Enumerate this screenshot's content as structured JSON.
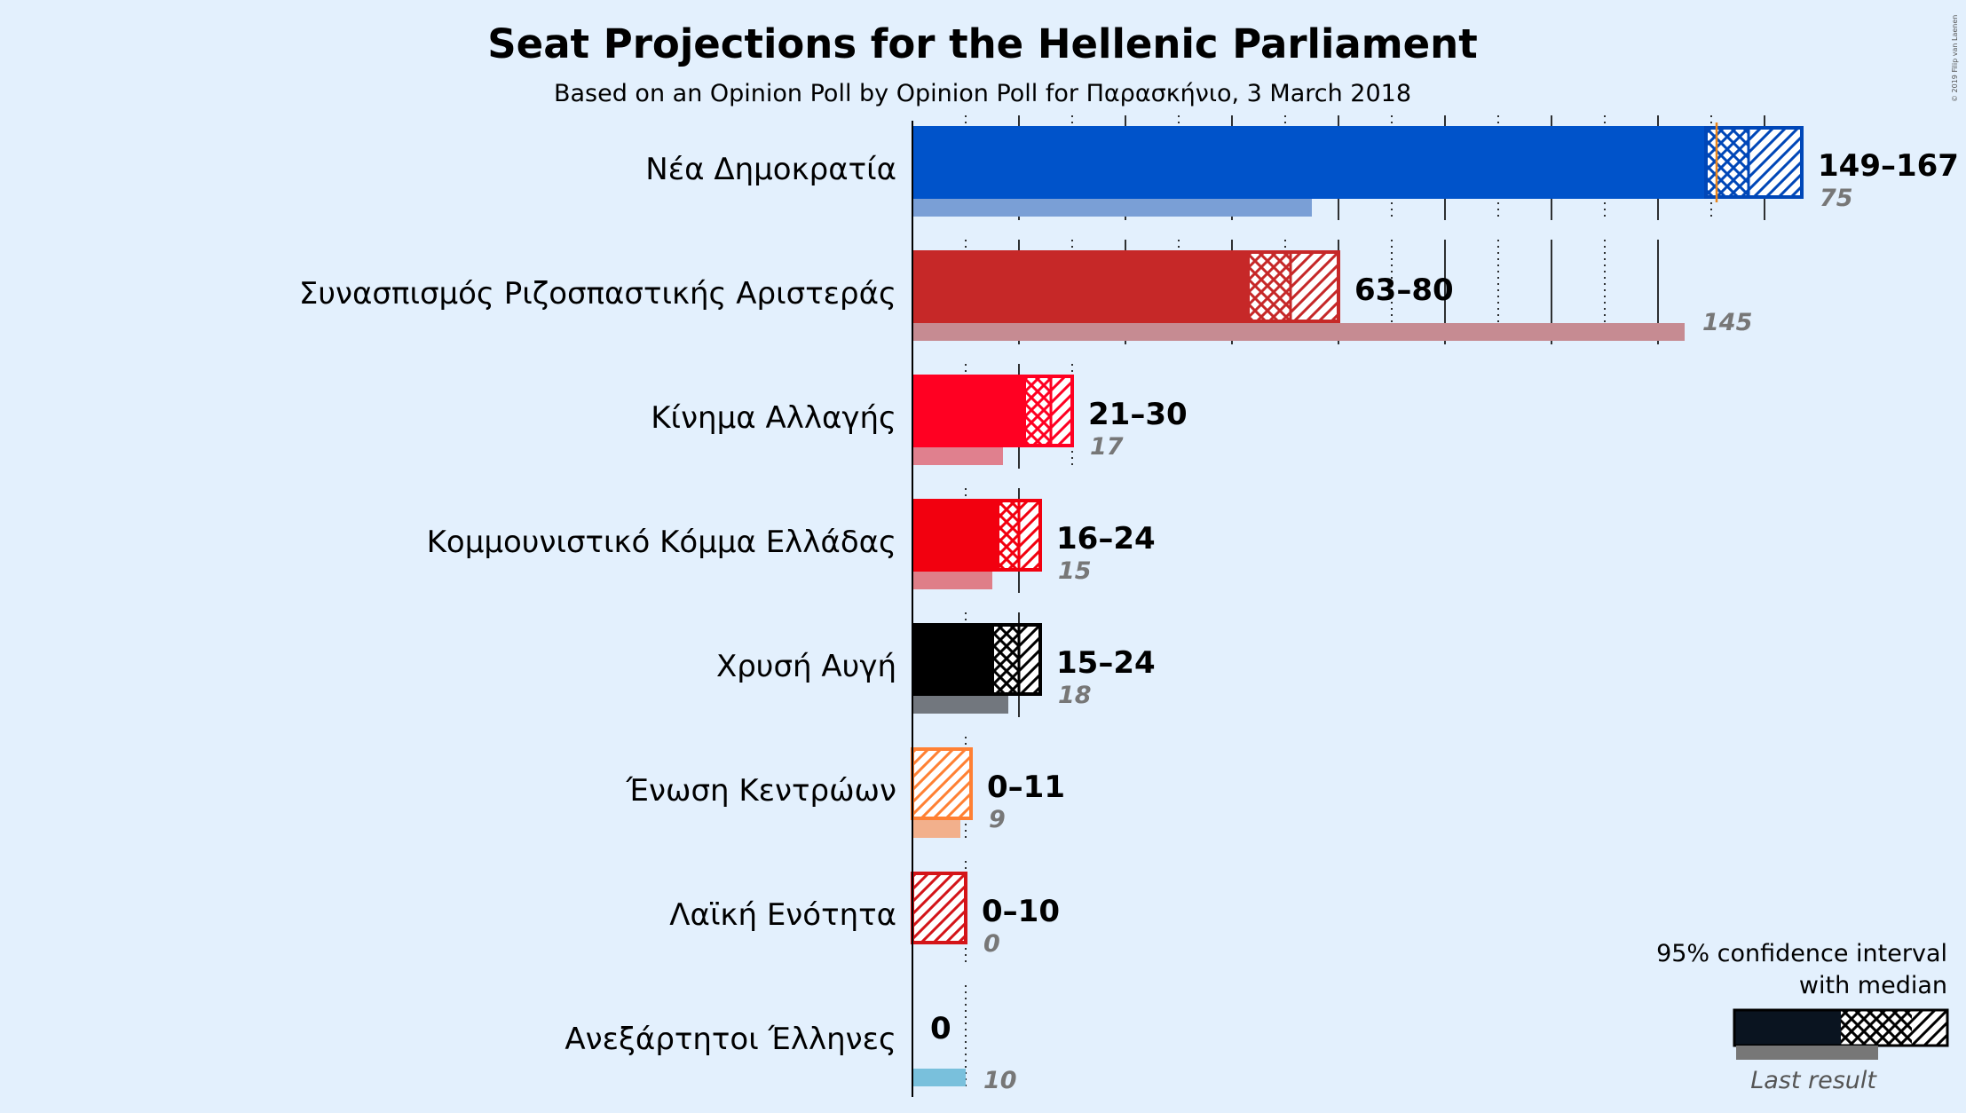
{
  "chart_data": {
    "type": "bar",
    "title": "Seat Projections for the Hellenic Parliament",
    "subtitle": "Based on an Opinion Poll by Opinion Poll for Παρασκήνιο, 3 March 2018",
    "copyright": "© 2019 Filip van Laenen",
    "majority_line": 151,
    "xlim": [
      0,
      170
    ],
    "grid_step": 10,
    "series": [
      {
        "name": "Νέα Δημοκρατία",
        "low": 149,
        "median": 157,
        "high": 167,
        "last": 75,
        "range_label": "149–167",
        "last_label": "75",
        "color": "#0053ca",
        "last_color": "#7a9fd6",
        "outline": "#0047b8"
      },
      {
        "name": "Συνασπισμός Ριζοσπαστικής Αριστεράς",
        "low": 63,
        "median": 71,
        "high": 80,
        "last": 145,
        "range_label": "63–80",
        "last_label": "145",
        "color": "#c62828",
        "last_color": "#c68b92",
        "outline": "#c62828"
      },
      {
        "name": "Κίνημα Αλλαγής",
        "low": 21,
        "median": 26,
        "high": 30,
        "last": 17,
        "range_label": "21–30",
        "last_label": "17",
        "color": "#ff0022",
        "last_color": "#e0808e",
        "outline": "#ff0022"
      },
      {
        "name": "Κομμουνιστικό Κόμμα Ελλάδας",
        "low": 16,
        "median": 20,
        "high": 24,
        "last": 15,
        "range_label": "16–24",
        "last_label": "15",
        "color": "#f2000f",
        "last_color": "#df7e88",
        "outline": "#f2000f"
      },
      {
        "name": "Χρυσή Αυγή",
        "low": 15,
        "median": 20,
        "high": 24,
        "last": 18,
        "range_label": "15–24",
        "last_label": "18",
        "color": "#000000",
        "last_color": "#72777e",
        "outline": "#000000"
      },
      {
        "name": "Ένωση Κεντρώων",
        "low": 0,
        "median": 0,
        "high": 11,
        "last": 9,
        "range_label": "0–11",
        "last_label": "9",
        "color": "#ff8033",
        "last_color": "#f2b08c",
        "outline": "#ff8033"
      },
      {
        "name": "Λαϊκή Ενότητα",
        "low": 0,
        "median": 0,
        "high": 10,
        "last": 0,
        "range_label": "0–10",
        "last_label": "0",
        "color": "#d41418",
        "last_color": "#d88a8c",
        "outline": "#d41418"
      },
      {
        "name": "Ανεξάρτητοι Έλληνες",
        "low": 0,
        "median": 0,
        "high": 0,
        "last": 10,
        "range_label": "0",
        "last_label": "10",
        "color": "#5bb0e0",
        "last_color": "#79c0dc",
        "outline": "#5bb0e0"
      }
    ],
    "legend": {
      "line1": "95% confidence interval",
      "line2": "with median",
      "last_result": "Last result"
    }
  }
}
